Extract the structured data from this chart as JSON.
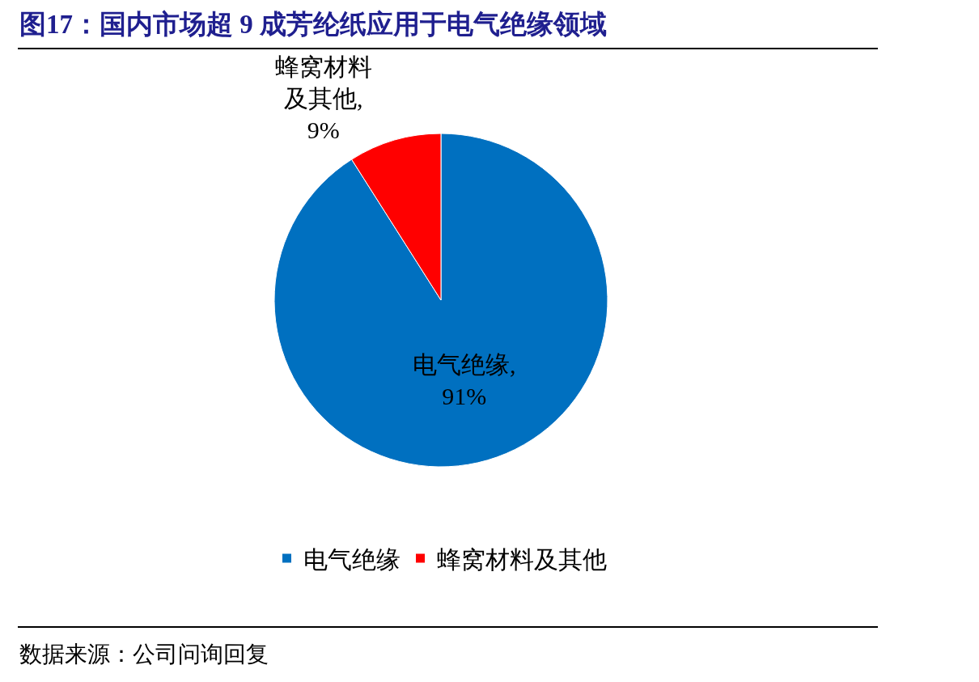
{
  "chart_data": {
    "type": "pie",
    "title": "图17：国内市场超 9 成芳纶纸应用于电气绝缘领域",
    "categories": [
      "电气绝缘",
      "蜂窝材料及其他"
    ],
    "values": [
      91,
      9
    ],
    "colors": [
      "#0070c0",
      "#ff0000"
    ],
    "value_labels": [
      "电气绝缘,\n91%",
      "蜂窝材料及其他,\n9%"
    ],
    "legend": "bottom",
    "annotations": [
      "数据来源：公司问询回复"
    ]
  }
}
